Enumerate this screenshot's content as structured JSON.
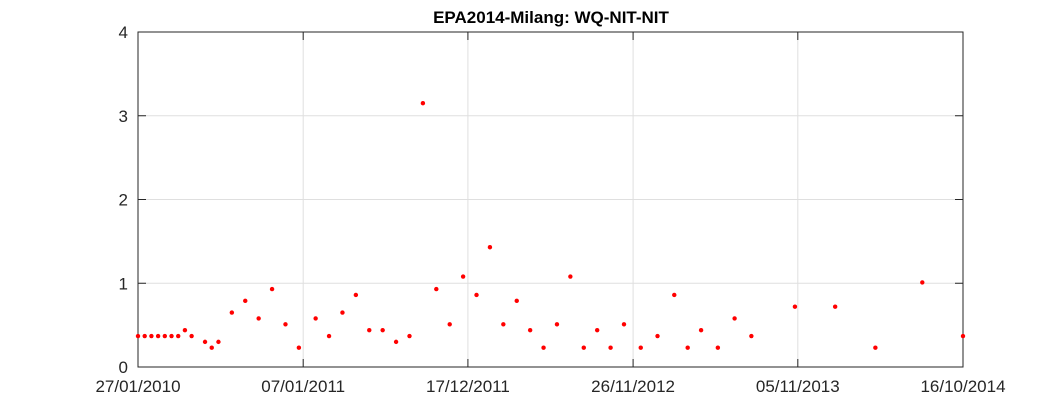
{
  "chart_data": {
    "type": "scatter",
    "title": "EPA2014-Milang: WQ-NIT-NIT",
    "xlabel": "",
    "ylabel": "",
    "x_axis_type": "date",
    "xlim": [
      "2010-01-27",
      "2014-10-16"
    ],
    "ylim": [
      0,
      4
    ],
    "x_ticks": [
      "27/01/2010",
      "07/01/2011",
      "17/12/2011",
      "26/11/2012",
      "05/11/2013",
      "16/10/2014"
    ],
    "y_ticks": [
      0,
      1,
      2,
      3,
      4
    ],
    "grid": true,
    "marker_color": "#ff0000",
    "series": [
      {
        "x": [
          "2010-01-27",
          "2010-02-10",
          "2010-02-24",
          "2010-03-10",
          "2010-03-24",
          "2010-04-07",
          "2010-04-21",
          "2010-05-05",
          "2010-05-19",
          "2010-06-16",
          "2010-06-30",
          "2010-07-14",
          "2010-08-11",
          "2010-09-08",
          "2010-10-06",
          "2010-11-03",
          "2010-12-01",
          "2010-12-29",
          "2011-02-02",
          "2011-03-02",
          "2011-03-30",
          "2011-04-27",
          "2011-05-25",
          "2011-06-22",
          "2011-07-20",
          "2011-08-17",
          "2011-09-14",
          "2011-10-12",
          "2011-11-09",
          "2011-12-07",
          "2012-01-04",
          "2012-02-01",
          "2012-02-29",
          "2012-03-28",
          "2012-04-25",
          "2012-05-23",
          "2012-06-20",
          "2012-07-18",
          "2012-08-15",
          "2012-09-12",
          "2012-10-10",
          "2012-11-07",
          "2012-12-12",
          "2013-01-16",
          "2013-02-20",
          "2013-03-20",
          "2013-04-17",
          "2013-05-22",
          "2013-06-26",
          "2013-07-31",
          "2013-10-30",
          "2014-01-22",
          "2014-04-16",
          "2014-07-23",
          "2014-10-16"
        ],
        "y": [
          0.37,
          0.37,
          0.37,
          0.37,
          0.37,
          0.37,
          0.37,
          0.44,
          0.37,
          0.3,
          0.23,
          0.3,
          0.65,
          0.79,
          0.58,
          0.93,
          0.51,
          0.23,
          0.58,
          0.37,
          0.65,
          0.86,
          0.44,
          0.44,
          0.3,
          0.37,
          3.15,
          0.93,
          0.51,
          1.08,
          0.86,
          1.43,
          0.51,
          0.79,
          0.44,
          0.23,
          0.51,
          1.08,
          0.23,
          0.44,
          0.23,
          0.51,
          0.23,
          0.37,
          0.86,
          0.23,
          0.44,
          0.23,
          0.58,
          0.37,
          0.72,
          0.72,
          0.23,
          1.01,
          0.37
        ]
      }
    ]
  }
}
